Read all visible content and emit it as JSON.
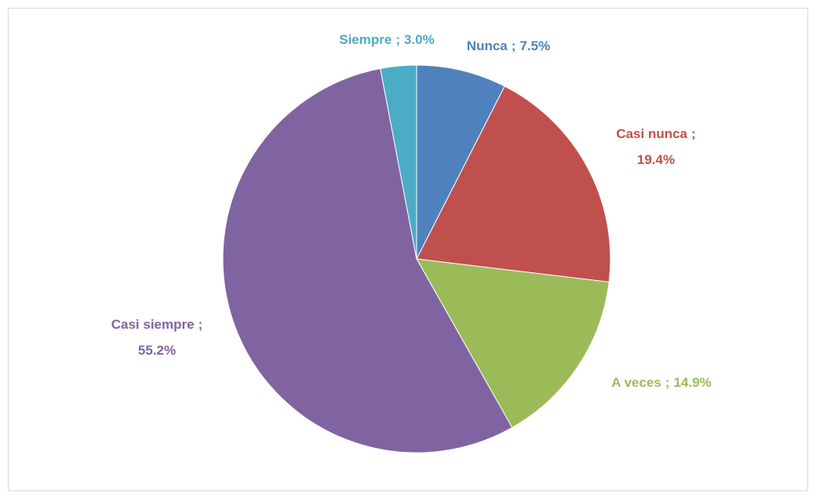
{
  "chart_data": {
    "type": "pie",
    "categories": [
      "Nunca",
      "Casi nunca",
      "A veces",
      "Casi siempre",
      "Siempre"
    ],
    "values": [
      7.5,
      19.4,
      14.9,
      55.2,
      3.0
    ],
    "value_labels": [
      "7.5%",
      "19.4%",
      "14.9%",
      "55.2%",
      "3.0%"
    ],
    "label_separator": ";",
    "colors": [
      "#4f81bd",
      "#c0504d",
      "#9bbb59",
      "#8064a2",
      "#4bacc6"
    ]
  }
}
